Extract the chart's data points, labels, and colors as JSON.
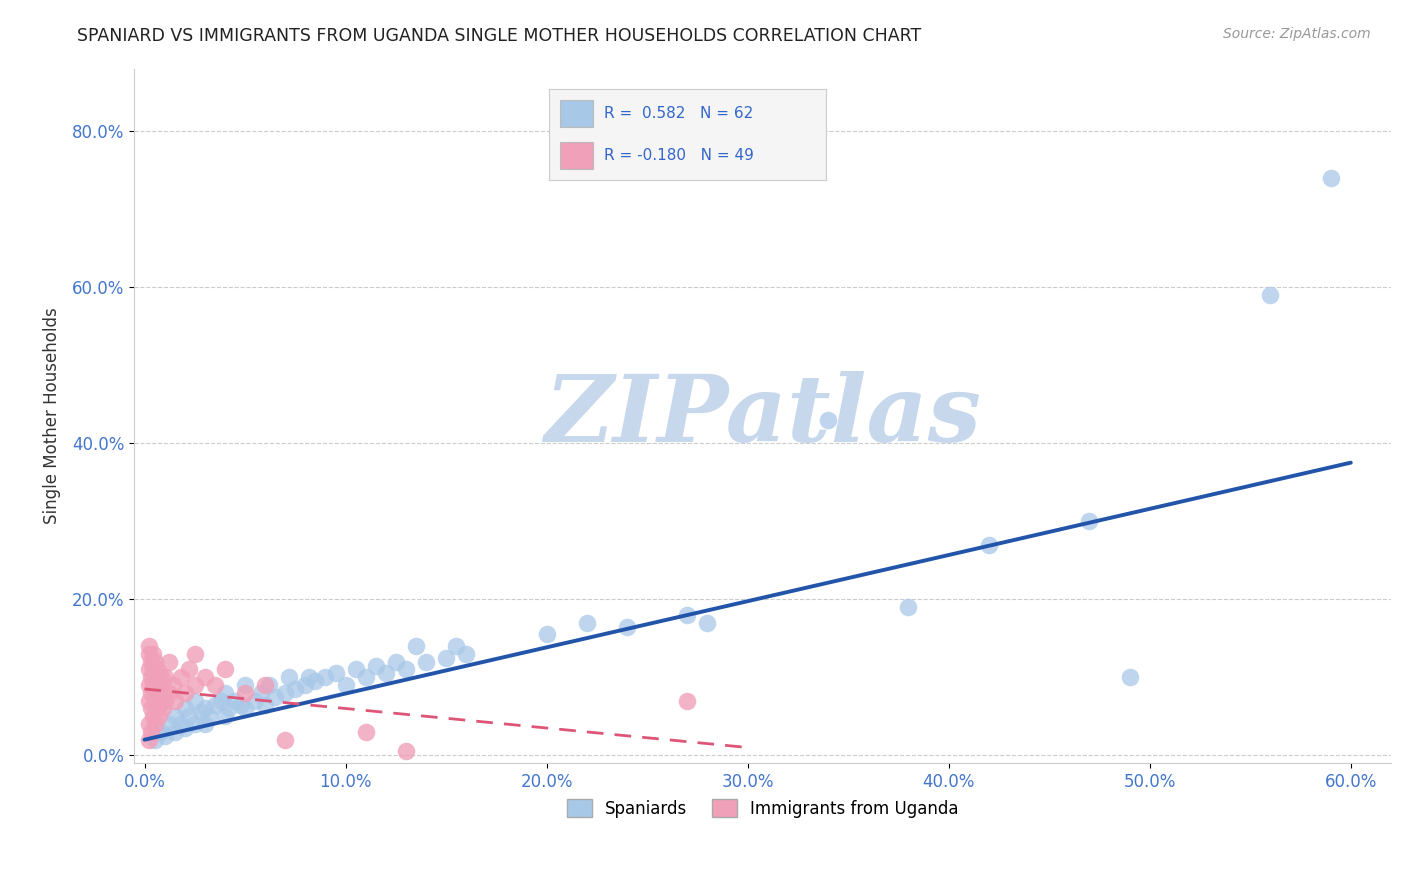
{
  "title": "SPANIARD VS IMMIGRANTS FROM UGANDA SINGLE MOTHER HOUSEHOLDS CORRELATION CHART",
  "source": "Source: ZipAtlas.com",
  "ylabel": "Single Mother Households",
  "xlim": [
    -0.005,
    0.62
  ],
  "ylim": [
    -0.01,
    0.88
  ],
  "xticks": [
    0.0,
    0.1,
    0.2,
    0.3,
    0.4,
    0.5,
    0.6
  ],
  "xticklabels": [
    "0.0%",
    "10.0%",
    "20.0%",
    "30.0%",
    "40.0%",
    "50.0%",
    "60.0%"
  ],
  "yticks": [
    0.0,
    0.2,
    0.4,
    0.6,
    0.8
  ],
  "yticklabels": [
    "0.0%",
    "20.0%",
    "40.0%",
    "60.0%",
    "80.0%"
  ],
  "blue_color": "#A8C8E8",
  "pink_color": "#F0A0B8",
  "trendline_blue": "#2255AA",
  "trendline_pink": "#DD5577",
  "watermark": "ZIPatlas",
  "watermark_color": "#C8D8EC",
  "blue_scatter": [
    [
      0.005,
      0.02
    ],
    [
      0.008,
      0.03
    ],
    [
      0.01,
      0.025
    ],
    [
      0.012,
      0.04
    ],
    [
      0.015,
      0.03
    ],
    [
      0.015,
      0.05
    ],
    [
      0.018,
      0.04
    ],
    [
      0.02,
      0.035
    ],
    [
      0.02,
      0.06
    ],
    [
      0.022,
      0.05
    ],
    [
      0.025,
      0.04
    ],
    [
      0.025,
      0.07
    ],
    [
      0.028,
      0.055
    ],
    [
      0.03,
      0.04
    ],
    [
      0.03,
      0.06
    ],
    [
      0.032,
      0.05
    ],
    [
      0.035,
      0.065
    ],
    [
      0.038,
      0.07
    ],
    [
      0.04,
      0.05
    ],
    [
      0.04,
      0.08
    ],
    [
      0.042,
      0.06
    ],
    [
      0.045,
      0.07
    ],
    [
      0.048,
      0.065
    ],
    [
      0.05,
      0.06
    ],
    [
      0.05,
      0.09
    ],
    [
      0.055,
      0.07
    ],
    [
      0.058,
      0.08
    ],
    [
      0.06,
      0.065
    ],
    [
      0.062,
      0.09
    ],
    [
      0.065,
      0.075
    ],
    [
      0.07,
      0.08
    ],
    [
      0.072,
      0.1
    ],
    [
      0.075,
      0.085
    ],
    [
      0.08,
      0.09
    ],
    [
      0.082,
      0.1
    ],
    [
      0.085,
      0.095
    ],
    [
      0.09,
      0.1
    ],
    [
      0.095,
      0.105
    ],
    [
      0.1,
      0.09
    ],
    [
      0.105,
      0.11
    ],
    [
      0.11,
      0.1
    ],
    [
      0.115,
      0.115
    ],
    [
      0.12,
      0.105
    ],
    [
      0.125,
      0.12
    ],
    [
      0.13,
      0.11
    ],
    [
      0.135,
      0.14
    ],
    [
      0.14,
      0.12
    ],
    [
      0.15,
      0.125
    ],
    [
      0.155,
      0.14
    ],
    [
      0.16,
      0.13
    ],
    [
      0.2,
      0.155
    ],
    [
      0.22,
      0.17
    ],
    [
      0.24,
      0.165
    ],
    [
      0.27,
      0.18
    ],
    [
      0.28,
      0.17
    ],
    [
      0.34,
      0.43
    ],
    [
      0.38,
      0.19
    ],
    [
      0.42,
      0.27
    ],
    [
      0.47,
      0.3
    ],
    [
      0.49,
      0.1
    ],
    [
      0.56,
      0.59
    ],
    [
      0.59,
      0.74
    ]
  ],
  "pink_scatter": [
    [
      0.002,
      0.02
    ],
    [
      0.002,
      0.04
    ],
    [
      0.002,
      0.07
    ],
    [
      0.002,
      0.09
    ],
    [
      0.002,
      0.11
    ],
    [
      0.002,
      0.13
    ],
    [
      0.002,
      0.14
    ],
    [
      0.003,
      0.03
    ],
    [
      0.003,
      0.06
    ],
    [
      0.003,
      0.08
    ],
    [
      0.003,
      0.1
    ],
    [
      0.003,
      0.12
    ],
    [
      0.004,
      0.05
    ],
    [
      0.004,
      0.09
    ],
    [
      0.004,
      0.11
    ],
    [
      0.004,
      0.13
    ],
    [
      0.005,
      0.04
    ],
    [
      0.005,
      0.07
    ],
    [
      0.005,
      0.1
    ],
    [
      0.005,
      0.12
    ],
    [
      0.006,
      0.06
    ],
    [
      0.006,
      0.08
    ],
    [
      0.006,
      0.11
    ],
    [
      0.007,
      0.05
    ],
    [
      0.007,
      0.09
    ],
    [
      0.008,
      0.07
    ],
    [
      0.008,
      0.1
    ],
    [
      0.009,
      0.06
    ],
    [
      0.009,
      0.08
    ],
    [
      0.01,
      0.07
    ],
    [
      0.01,
      0.1
    ],
    [
      0.012,
      0.08
    ],
    [
      0.012,
      0.12
    ],
    [
      0.014,
      0.09
    ],
    [
      0.015,
      0.07
    ],
    [
      0.018,
      0.1
    ],
    [
      0.02,
      0.08
    ],
    [
      0.022,
      0.11
    ],
    [
      0.025,
      0.09
    ],
    [
      0.025,
      0.13
    ],
    [
      0.03,
      0.1
    ],
    [
      0.035,
      0.09
    ],
    [
      0.04,
      0.11
    ],
    [
      0.05,
      0.08
    ],
    [
      0.06,
      0.09
    ],
    [
      0.07,
      0.02
    ],
    [
      0.11,
      0.03
    ],
    [
      0.13,
      0.005
    ],
    [
      0.27,
      0.07
    ]
  ],
  "blue_trendline_x": [
    0.0,
    0.6
  ],
  "blue_trendline_y": [
    0.02,
    0.375
  ],
  "pink_trendline_x": [
    0.0,
    0.3
  ],
  "pink_trendline_y": [
    0.085,
    0.01
  ]
}
